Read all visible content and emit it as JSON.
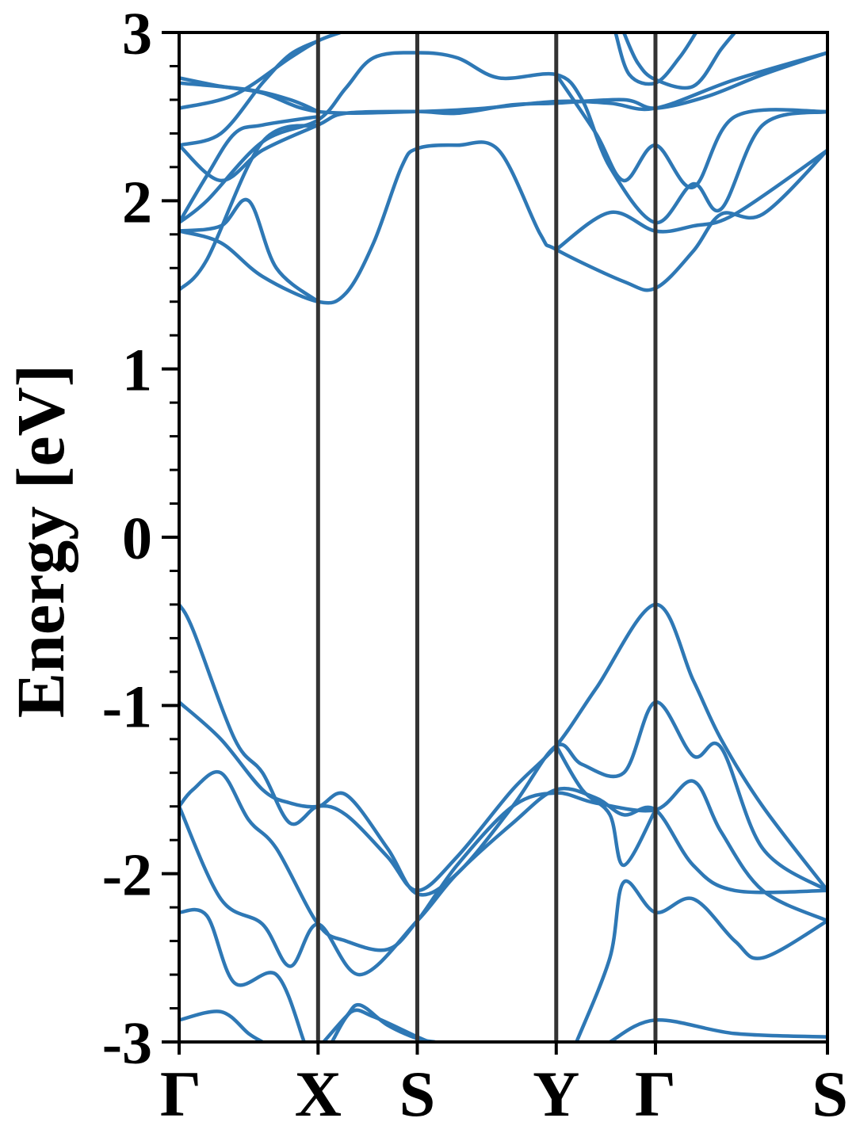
{
  "chart_data": {
    "type": "line",
    "title": "",
    "xlabel": "",
    "ylabel": "Energy [eV]",
    "ylim": [
      -3,
      3
    ],
    "y_ticks": [
      "-3",
      "-2",
      "-1",
      "0",
      "1",
      "2",
      "3"
    ],
    "y_minor_step": 0.2,
    "x_ticks": [
      {
        "label": "Γ",
        "x": 0.0
      },
      {
        "label": "X",
        "x": 0.5
      },
      {
        "label": "S",
        "x": 0.857
      },
      {
        "label": "Y",
        "x": 1.357
      },
      {
        "label": "Γ",
        "x": 1.714
      },
      {
        "label": "S",
        "x": 2.333
      }
    ],
    "xlim": [
      0,
      2.333
    ],
    "grid": false,
    "legend": "none",
    "line_color": "#2e78b5",
    "divider_color": "#333333",
    "series": [
      {
        "points": [
          [
            0,
            2.73
          ],
          [
            0.15,
            2.68
          ],
          [
            0.3,
            2.64
          ],
          [
            0.5,
            2.53
          ],
          [
            0.857,
            2.53
          ],
          [
            1.1,
            2.55
          ],
          [
            1.357,
            2.59
          ],
          [
            1.55,
            2.58
          ],
          [
            1.714,
            2.55
          ],
          [
            2.0,
            2.72
          ],
          [
            2.333,
            2.88
          ]
        ]
      },
      {
        "points": [
          [
            0,
            2.7
          ],
          [
            0.25,
            2.66
          ],
          [
            0.4,
            2.6
          ],
          [
            0.5,
            2.53
          ]
        ]
      },
      {
        "points": [
          [
            0,
            2.55
          ],
          [
            0.2,
            2.63
          ],
          [
            0.4,
            2.85
          ],
          [
            0.5,
            2.95
          ],
          [
            0.58,
            3.0
          ]
        ]
      },
      {
        "points": [
          [
            0,
            2.33
          ],
          [
            0.15,
            2.4
          ],
          [
            0.3,
            2.7
          ],
          [
            0.4,
            2.87
          ],
          [
            0.5,
            2.95
          ]
        ]
      },
      {
        "points": [
          [
            0,
            2.33
          ],
          [
            0.15,
            2.12
          ],
          [
            0.3,
            2.3
          ],
          [
            0.5,
            2.45
          ],
          [
            0.6,
            2.52
          ],
          [
            0.857,
            2.53
          ],
          [
            1.0,
            2.52
          ],
          [
            1.2,
            2.57
          ],
          [
            1.357,
            2.58
          ],
          [
            1.6,
            2.6
          ],
          [
            1.714,
            2.55
          ],
          [
            1.9,
            2.62
          ],
          [
            2.1,
            2.75
          ],
          [
            2.333,
            2.88
          ]
        ]
      },
      {
        "points": [
          [
            0,
            1.87
          ],
          [
            0.1,
            2.0
          ],
          [
            0.3,
            2.35
          ],
          [
            0.5,
            2.48
          ],
          [
            0.6,
            2.67
          ],
          [
            0.7,
            2.85
          ],
          [
            0.857,
            2.88
          ],
          [
            1.0,
            2.85
          ],
          [
            1.15,
            2.73
          ],
          [
            1.357,
            2.75
          ],
          [
            1.45,
            2.6
          ],
          [
            1.55,
            2.2
          ],
          [
            1.714,
            1.87
          ],
          [
            1.85,
            2.1
          ],
          [
            1.95,
            1.95
          ],
          [
            2.1,
            2.45
          ],
          [
            2.333,
            2.53
          ]
        ]
      },
      {
        "points": [
          [
            0,
            1.87
          ],
          [
            0.1,
            2.15
          ],
          [
            0.2,
            2.4
          ],
          [
            0.3,
            2.45
          ],
          [
            0.5,
            2.5
          ]
        ]
      },
      {
        "points": [
          [
            0,
            1.47
          ],
          [
            0.1,
            1.65
          ],
          [
            0.3,
            2.35
          ],
          [
            0.5,
            2.45
          ]
        ]
      },
      {
        "points": [
          [
            0,
            1.82
          ],
          [
            0.15,
            1.75
          ],
          [
            0.3,
            1.55
          ],
          [
            0.5,
            1.4
          ],
          [
            0.6,
            1.45
          ],
          [
            0.7,
            1.75
          ],
          [
            0.8,
            2.2
          ],
          [
            0.857,
            2.31
          ],
          [
            1.0,
            2.33
          ],
          [
            1.15,
            2.3
          ],
          [
            1.3,
            1.8
          ],
          [
            1.357,
            1.71
          ],
          [
            1.6,
            1.52
          ],
          [
            1.714,
            1.48
          ],
          [
            1.85,
            1.7
          ],
          [
            1.95,
            1.92
          ],
          [
            2.1,
            1.92
          ],
          [
            2.333,
            2.3
          ]
        ]
      },
      {
        "points": [
          [
            0,
            1.82
          ],
          [
            0.15,
            1.85
          ],
          [
            0.25,
            2.0
          ],
          [
            0.35,
            1.6
          ],
          [
            0.5,
            1.4
          ]
        ]
      },
      {
        "points": [
          [
            1.357,
            1.71
          ],
          [
            1.55,
            1.93
          ],
          [
            1.714,
            1.82
          ],
          [
            1.85,
            1.85
          ],
          [
            2.0,
            1.92
          ],
          [
            2.333,
            2.3
          ]
        ]
      },
      {
        "points": [
          [
            1.357,
            2.75
          ],
          [
            1.5,
            2.4
          ],
          [
            1.6,
            2.12
          ],
          [
            1.714,
            2.33
          ],
          [
            1.85,
            2.08
          ],
          [
            2.0,
            2.5
          ],
          [
            2.333,
            2.53
          ]
        ]
      },
      {
        "points": [
          [
            1.57,
            3.0
          ],
          [
            1.62,
            2.75
          ],
          [
            1.714,
            2.7
          ],
          [
            1.8,
            2.85
          ],
          [
            1.86,
            3.0
          ]
        ]
      },
      {
        "points": [
          [
            1.6,
            3.0
          ],
          [
            1.65,
            2.82
          ],
          [
            1.714,
            2.72
          ],
          [
            1.85,
            2.68
          ],
          [
            1.95,
            2.9
          ],
          [
            2.0,
            3.0
          ]
        ]
      },
      {
        "points": [
          [
            0,
            -0.4
          ],
          [
            0.05,
            -0.55
          ],
          [
            0.2,
            -1.2
          ],
          [
            0.3,
            -1.4
          ],
          [
            0.4,
            -1.7
          ],
          [
            0.5,
            -1.6
          ],
          [
            0.6,
            -1.65
          ],
          [
            0.75,
            -1.9
          ],
          [
            0.857,
            -2.1
          ],
          [
            1.0,
            -1.9
          ],
          [
            1.2,
            -1.5
          ],
          [
            1.357,
            -1.24
          ],
          [
            1.5,
            -0.9
          ],
          [
            1.714,
            -0.4
          ],
          [
            1.85,
            -0.85
          ],
          [
            1.95,
            -1.2
          ],
          [
            2.1,
            -1.6
          ],
          [
            2.333,
            -2.1
          ]
        ]
      },
      {
        "points": [
          [
            0,
            -0.98
          ],
          [
            0.15,
            -1.2
          ],
          [
            0.3,
            -1.5
          ],
          [
            0.4,
            -1.58
          ],
          [
            0.5,
            -1.6
          ],
          [
            0.6,
            -1.53
          ],
          [
            0.75,
            -1.85
          ],
          [
            0.857,
            -2.12
          ],
          [
            1.0,
            -2.0
          ],
          [
            1.2,
            -1.6
          ],
          [
            1.357,
            -1.24
          ],
          [
            1.45,
            -1.35
          ],
          [
            1.6,
            -1.4
          ],
          [
            1.714,
            -0.98
          ],
          [
            1.85,
            -1.3
          ],
          [
            1.95,
            -1.25
          ],
          [
            2.1,
            -1.85
          ],
          [
            2.333,
            -2.1
          ]
        ]
      },
      {
        "points": [
          [
            0,
            -1.6
          ],
          [
            0.05,
            -1.5
          ],
          [
            0.15,
            -1.4
          ],
          [
            0.25,
            -1.68
          ],
          [
            0.35,
            -1.85
          ],
          [
            0.5,
            -2.3
          ],
          [
            0.6,
            -2.4
          ],
          [
            0.75,
            -2.45
          ],
          [
            0.857,
            -2.28
          ],
          [
            1.0,
            -1.95
          ],
          [
            1.2,
            -1.6
          ],
          [
            1.357,
            -1.52
          ],
          [
            1.5,
            -1.58
          ],
          [
            1.714,
            -1.62
          ],
          [
            1.85,
            -1.45
          ],
          [
            1.95,
            -1.75
          ],
          [
            2.1,
            -2.1
          ],
          [
            2.333,
            -2.28
          ]
        ]
      },
      {
        "points": [
          [
            0,
            -1.6
          ],
          [
            0.15,
            -2.15
          ],
          [
            0.3,
            -2.3
          ],
          [
            0.4,
            -2.55
          ],
          [
            0.5,
            -2.3
          ],
          [
            0.65,
            -2.6
          ],
          [
            0.857,
            -2.28
          ],
          [
            1.0,
            -2.0
          ],
          [
            1.2,
            -1.7
          ],
          [
            1.357,
            -1.5
          ],
          [
            1.5,
            -1.55
          ],
          [
            1.6,
            -1.65
          ],
          [
            1.714,
            -1.62
          ],
          [
            1.85,
            -1.95
          ],
          [
            2.0,
            -2.1
          ],
          [
            2.333,
            -2.1
          ]
        ]
      },
      {
        "points": [
          [
            0,
            -2.23
          ],
          [
            0.1,
            -2.25
          ],
          [
            0.2,
            -2.65
          ],
          [
            0.35,
            -2.6
          ],
          [
            0.45,
            -3.0
          ]
        ]
      },
      {
        "points": [
          [
            0,
            -2.87
          ],
          [
            0.15,
            -2.82
          ],
          [
            0.25,
            -2.95
          ],
          [
            0.3,
            -3.0
          ]
        ]
      },
      {
        "points": [
          [
            0.52,
            -3.0
          ],
          [
            0.6,
            -2.85
          ],
          [
            0.65,
            -2.78
          ],
          [
            0.75,
            -2.9
          ],
          [
            0.857,
            -2.98
          ],
          [
            0.92,
            -3.0
          ]
        ]
      },
      {
        "points": [
          [
            0.55,
            -3.0
          ],
          [
            0.62,
            -2.82
          ],
          [
            0.7,
            -2.85
          ],
          [
            0.857,
            -2.97
          ],
          [
            0.9,
            -3.0
          ]
        ]
      },
      {
        "points": [
          [
            1.357,
            -1.24
          ],
          [
            1.45,
            -1.5
          ],
          [
            1.55,
            -1.65
          ],
          [
            1.6,
            -1.95
          ],
          [
            1.714,
            -1.62
          ]
        ]
      },
      {
        "points": [
          [
            1.43,
            -3.0
          ],
          [
            1.55,
            -2.5
          ],
          [
            1.6,
            -2.05
          ],
          [
            1.714,
            -2.23
          ],
          [
            1.85,
            -2.15
          ],
          [
            2.0,
            -2.4
          ],
          [
            2.1,
            -2.5
          ],
          [
            2.333,
            -2.28
          ]
        ]
      },
      {
        "points": [
          [
            1.55,
            -3.0
          ],
          [
            1.714,
            -2.87
          ],
          [
            2.0,
            -2.95
          ],
          [
            2.333,
            -2.97
          ]
        ]
      }
    ]
  }
}
